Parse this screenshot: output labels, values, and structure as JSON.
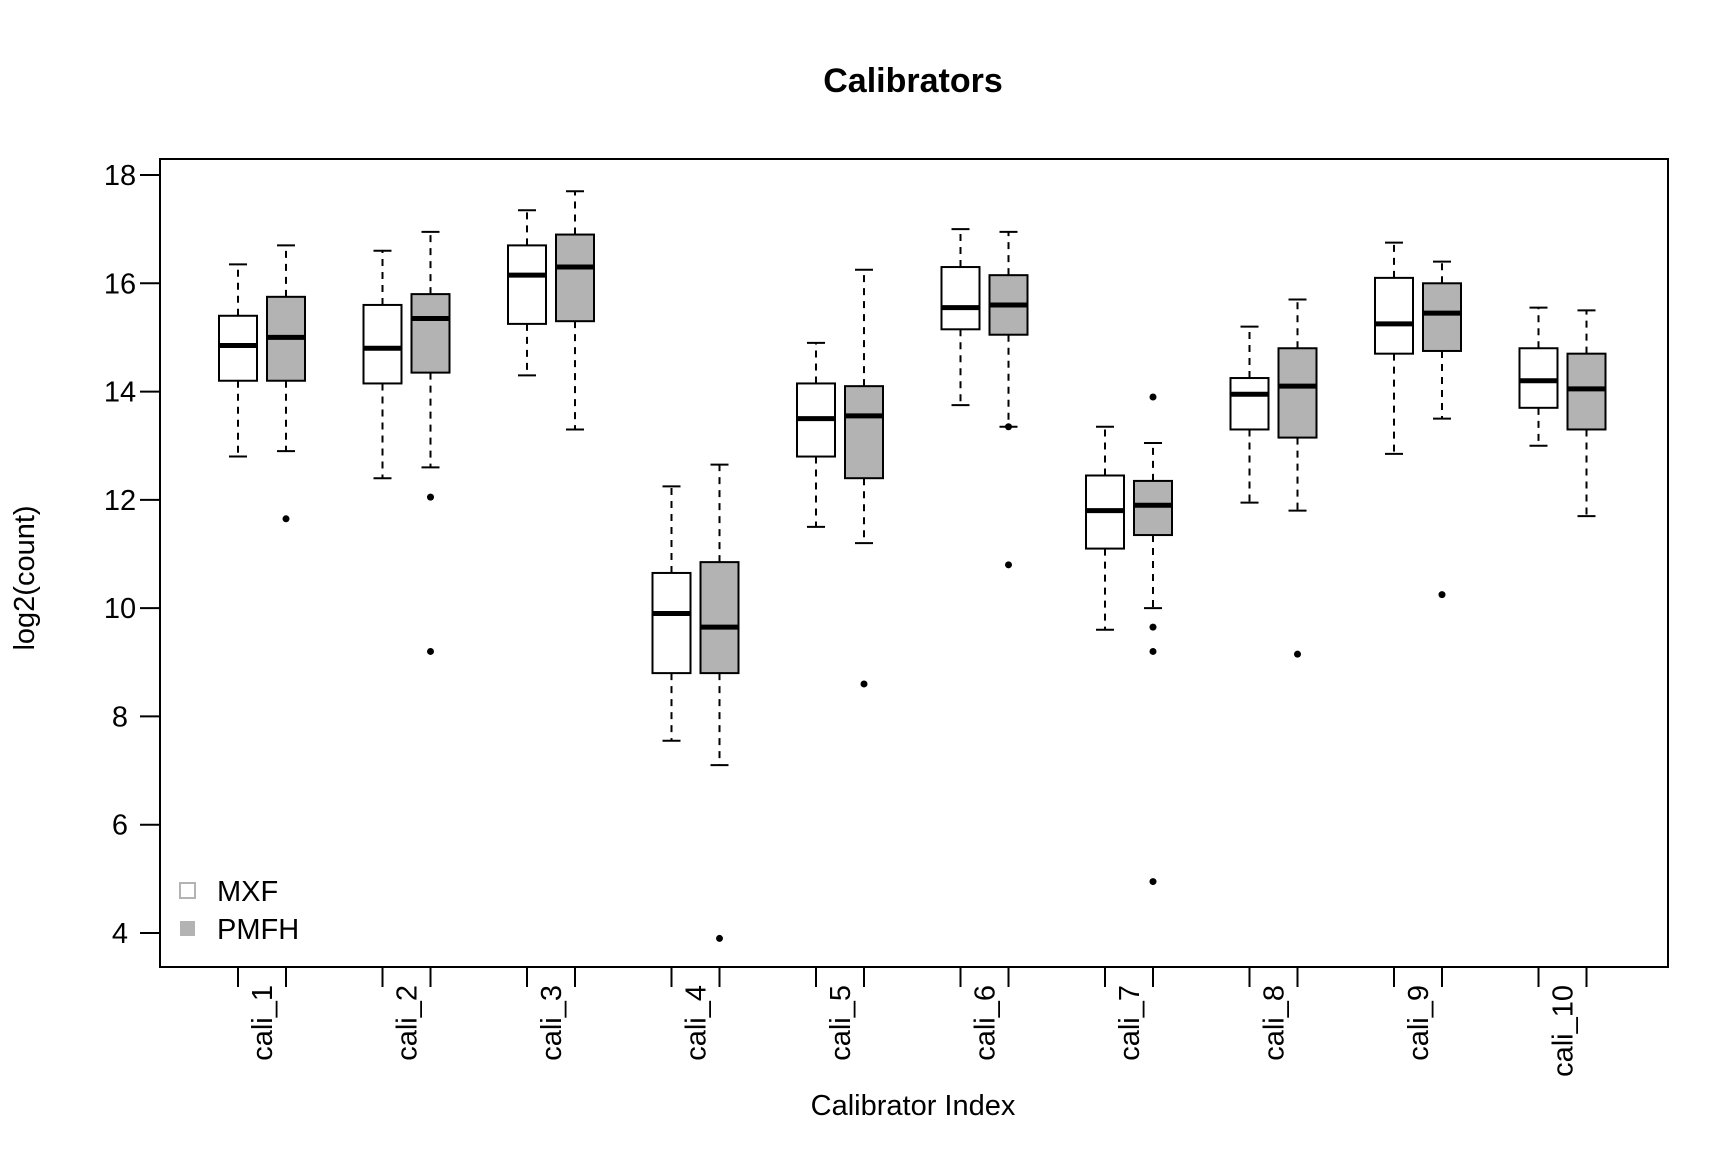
{
  "chart_data": {
    "type": "boxplot",
    "title": "Calibrators",
    "xlabel": "Calibrator Index",
    "ylabel": "log2(count)",
    "ylim": [
      3.4,
      18.3
    ],
    "yticks": [
      4,
      6,
      8,
      10,
      12,
      14,
      16,
      18
    ],
    "grid": false,
    "legend_position": "bottom-left",
    "categories": [
      "cali_1",
      "cali_2",
      "cali_3",
      "cali_4",
      "cali_5",
      "cali_6",
      "cali_7",
      "cali_8",
      "cali_9",
      "cali_10"
    ],
    "series": [
      {
        "name": "MXF",
        "color": "#ffffff",
        "boxes": [
          {
            "min": 12.8,
            "q1": 14.2,
            "median": 14.85,
            "q3": 15.4,
            "max": 16.35,
            "outliers": []
          },
          {
            "min": 12.4,
            "q1": 14.15,
            "median": 14.8,
            "q3": 15.6,
            "max": 16.6,
            "outliers": []
          },
          {
            "min": 14.3,
            "q1": 15.25,
            "median": 16.15,
            "q3": 16.7,
            "max": 17.35,
            "outliers": []
          },
          {
            "min": 7.55,
            "q1": 8.8,
            "median": 9.9,
            "q3": 10.65,
            "max": 12.25,
            "outliers": []
          },
          {
            "min": 11.5,
            "q1": 12.8,
            "median": 13.5,
            "q3": 14.15,
            "max": 14.9,
            "outliers": []
          },
          {
            "min": 13.75,
            "q1": 15.15,
            "median": 15.55,
            "q3": 16.3,
            "max": 17.0,
            "outliers": []
          },
          {
            "min": 9.6,
            "q1": 11.1,
            "median": 11.8,
            "q3": 12.45,
            "max": 13.35,
            "outliers": []
          },
          {
            "min": 11.95,
            "q1": 13.3,
            "median": 13.95,
            "q3": 14.25,
            "max": 15.2,
            "outliers": []
          },
          {
            "min": 12.85,
            "q1": 14.7,
            "median": 15.25,
            "q3": 16.1,
            "max": 16.75,
            "outliers": []
          },
          {
            "min": 13.0,
            "q1": 13.7,
            "median": 14.2,
            "q3": 14.8,
            "max": 15.55,
            "outliers": []
          }
        ]
      },
      {
        "name": "PMFH",
        "color": "#b3b3b3",
        "boxes": [
          {
            "min": 12.9,
            "q1": 14.2,
            "median": 15.0,
            "q3": 15.75,
            "max": 16.7,
            "outliers": [
              11.65
            ]
          },
          {
            "min": 12.6,
            "q1": 14.35,
            "median": 15.35,
            "q3": 15.8,
            "max": 16.95,
            "outliers": [
              12.05,
              9.2
            ]
          },
          {
            "min": 13.3,
            "q1": 15.3,
            "median": 16.3,
            "q3": 16.9,
            "max": 17.7,
            "outliers": []
          },
          {
            "min": 7.1,
            "q1": 8.8,
            "median": 9.65,
            "q3": 10.85,
            "max": 12.65,
            "outliers": [
              3.9
            ]
          },
          {
            "min": 11.2,
            "q1": 12.4,
            "median": 13.55,
            "q3": 14.1,
            "max": 16.25,
            "outliers": [
              8.6
            ]
          },
          {
            "min": 13.35,
            "q1": 15.05,
            "median": 15.6,
            "q3": 16.15,
            "max": 16.95,
            "outliers": [
              13.35,
              10.8
            ]
          },
          {
            "min": 10.0,
            "q1": 11.35,
            "median": 11.9,
            "q3": 12.35,
            "max": 13.05,
            "outliers": [
              13.9,
              9.65,
              9.2,
              4.95
            ]
          },
          {
            "min": 11.8,
            "q1": 13.15,
            "median": 14.1,
            "q3": 14.8,
            "max": 15.7,
            "outliers": [
              9.15
            ]
          },
          {
            "min": 13.5,
            "q1": 14.75,
            "median": 15.45,
            "q3": 16.0,
            "max": 16.4,
            "outliers": [
              10.25
            ]
          },
          {
            "min": 11.7,
            "q1": 13.3,
            "median": 14.05,
            "q3": 14.7,
            "max": 15.5,
            "outliers": []
          }
        ]
      }
    ]
  }
}
